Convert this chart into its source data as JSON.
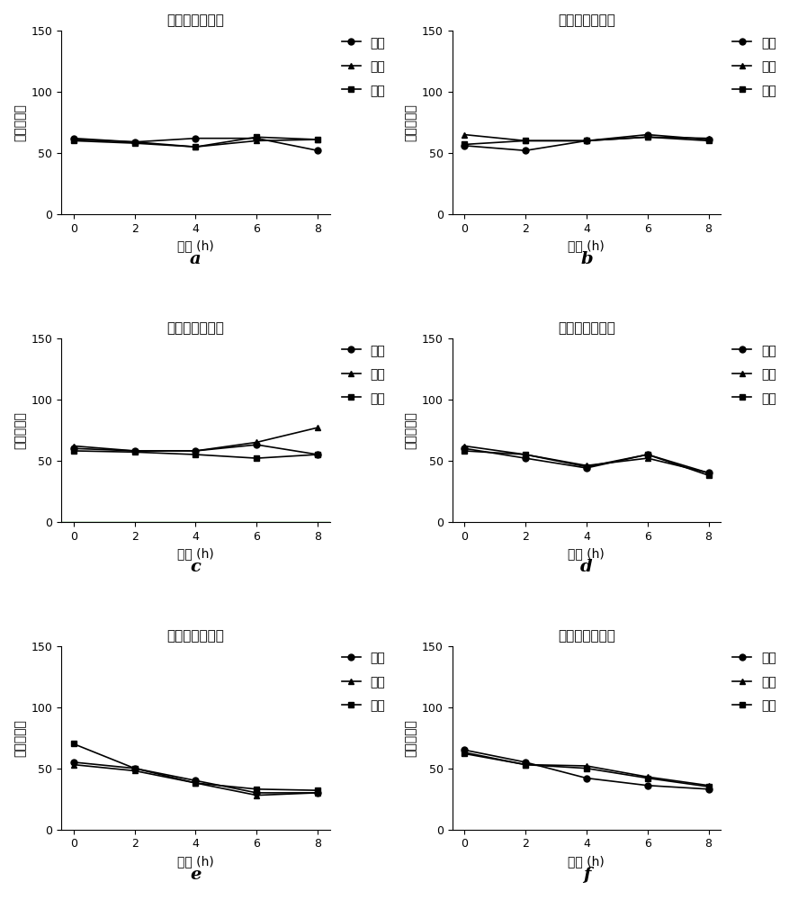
{
  "title": "卵囊分布均匀度",
  "xlabel": "时间 (h)",
  "ylabel": "卵囊平均数",
  "x": [
    0,
    2,
    4,
    6,
    8
  ],
  "legend_labels": [
    "上层",
    "中层",
    "下层"
  ],
  "panel_labels": [
    "a",
    "b",
    "c",
    "d",
    "e",
    "f"
  ],
  "panels": {
    "a": {
      "upper": [
        62,
        59,
        62,
        62,
        52
      ],
      "middle": [
        61,
        59,
        55,
        60,
        61
      ],
      "lower": [
        60,
        58,
        55,
        63,
        61
      ]
    },
    "b": {
      "upper": [
        56,
        52,
        60,
        65,
        61
      ],
      "middle": [
        65,
        60,
        60,
        63,
        62
      ],
      "lower": [
        57,
        60,
        60,
        63,
        60
      ]
    },
    "c": {
      "upper": [
        60,
        58,
        58,
        63,
        55
      ],
      "middle": [
        62,
        58,
        58,
        65,
        77
      ],
      "lower": [
        58,
        57,
        55,
        52,
        55
      ]
    },
    "d": {
      "upper": [
        60,
        52,
        44,
        55,
        40
      ],
      "middle": [
        62,
        55,
        46,
        52,
        40
      ],
      "lower": [
        58,
        55,
        45,
        55,
        38
      ]
    },
    "e": {
      "upper": [
        55,
        50,
        40,
        30,
        30
      ],
      "middle": [
        53,
        48,
        38,
        28,
        30
      ],
      "lower": [
        70,
        50,
        38,
        33,
        32
      ]
    },
    "f": {
      "upper": [
        65,
        55,
        42,
        36,
        33
      ],
      "middle": [
        63,
        53,
        52,
        43,
        36
      ],
      "lower": [
        62,
        53,
        50,
        42,
        35
      ]
    }
  },
  "ylim": [
    0,
    150
  ],
  "yticks": [
    0,
    50,
    100,
    150
  ],
  "line_color": "black",
  "marker_upper": "o",
  "marker_middle": "^",
  "marker_lower": "s",
  "markersize": 5,
  "linewidth": 1.2,
  "background_color": "white",
  "green_line_panels": [
    "c"
  ],
  "title_fontsize": 11,
  "label_fontsize": 10,
  "tick_fontsize": 9,
  "legend_fontsize": 10,
  "panel_label_fontsize": 14
}
